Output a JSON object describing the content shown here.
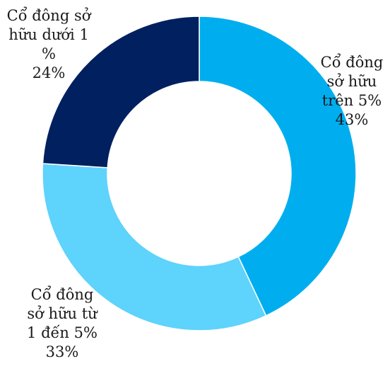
{
  "chart_data": {
    "type": "pie",
    "style": "donut",
    "title": "",
    "categories": [
      "Cổ đông sở hữu trên 5%",
      "Cổ đông sở hữu từ 1 đến 5%",
      "Cổ đông sở hữu dưới 1 %"
    ],
    "values": [
      43,
      33,
      24
    ],
    "unit": "%",
    "colors": [
      "#00AEEF",
      "#5ED3FB",
      "#002060"
    ],
    "legend": "none",
    "labels": [
      {
        "lines": [
          "Cổ đông",
          "sở hữu",
          "trên 5%"
        ],
        "percent": "43%"
      },
      {
        "lines": [
          "Cổ đông",
          "sở hữu từ",
          "1 đến 5%"
        ],
        "percent": "33%"
      },
      {
        "lines": [
          "Cổ đông sở",
          "hữu dưới 1",
          "%"
        ],
        "percent": "24%"
      }
    ]
  }
}
